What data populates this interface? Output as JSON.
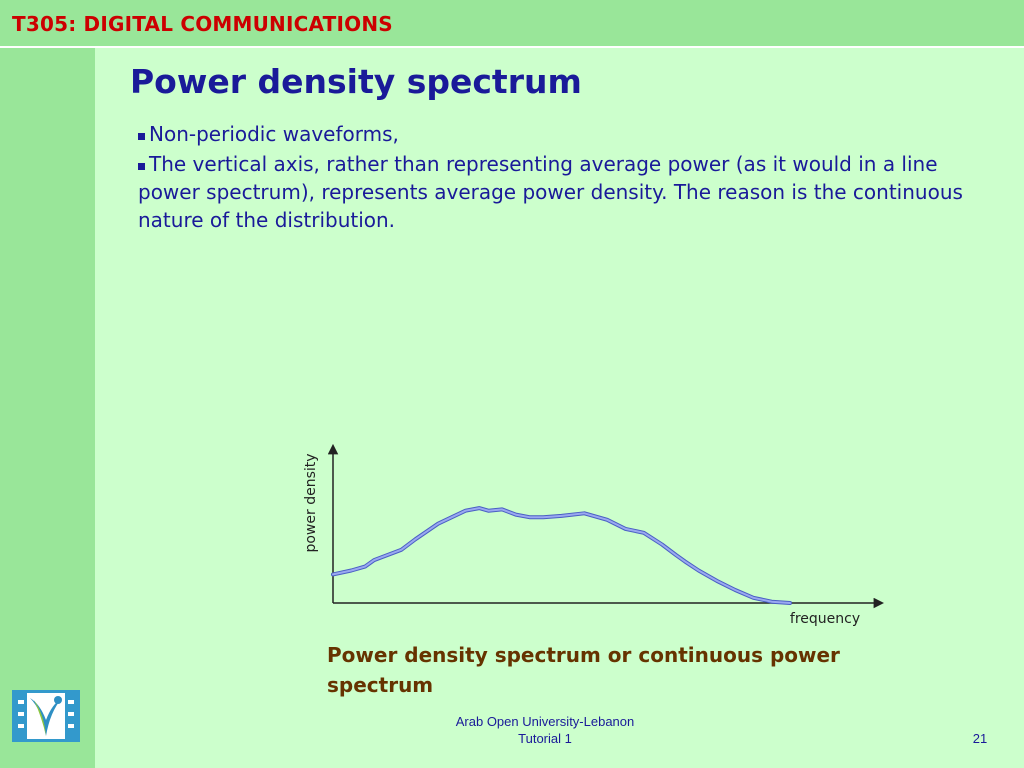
{
  "header": {
    "course_title": "T305: DIGITAL COMMUNICATIONS"
  },
  "slide": {
    "title": "Power density spectrum",
    "bullets": [
      "Non-periodic waveforms,",
      "The vertical axis, rather than representing average power (as it would in a line power spectrum), represents average power density. The reason is the continuous nature of the distribution."
    ],
    "caption": "Power density spectrum or continuous power spectrum"
  },
  "chart_data": {
    "type": "line",
    "xlabel": "frequency",
    "ylabel": "power density",
    "xlim": [
      0,
      10
    ],
    "ylim": [
      0,
      10
    ],
    "grid": false,
    "series": [
      {
        "x": [
          0,
          0.4,
          0.7,
          0.9,
          1.5,
          1.8,
          2.3,
          2.9,
          3.2,
          3.4,
          3.7,
          4.0,
          4.3,
          4.6,
          5.0,
          5.5,
          6.0,
          6.4,
          6.8,
          7.2,
          7.5,
          7.7,
          8.0,
          8.4,
          8.8,
          9.2,
          9.6,
          10.0
        ],
        "y": [
          2.2,
          2.5,
          2.8,
          3.3,
          4.1,
          4.9,
          6.1,
          7.1,
          7.3,
          7.1,
          7.2,
          6.8,
          6.6,
          6.6,
          6.7,
          6.9,
          6.4,
          5.7,
          5.4,
          4.5,
          3.7,
          3.2,
          2.5,
          1.7,
          1.0,
          0.4,
          0.1,
          0
        ]
      }
    ],
    "colors": {
      "line": "#7b8ce0",
      "axes": "#222222"
    }
  },
  "footer": {
    "institution": "Arab Open University-Lebanon",
    "tutorial": "Tutorial 1",
    "page_number": "21"
  }
}
